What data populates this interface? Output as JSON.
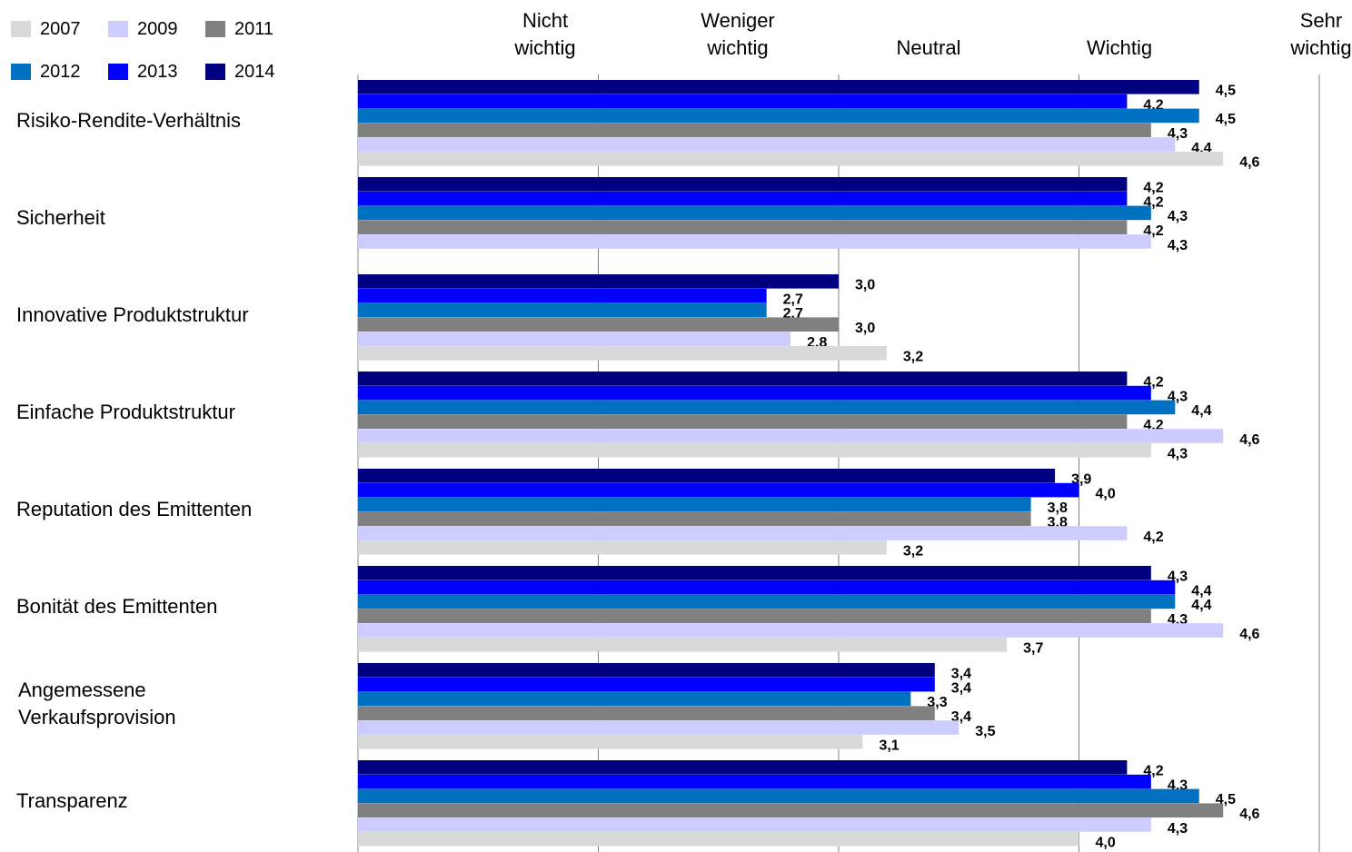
{
  "chart_data": {
    "type": "bar",
    "orientation": "horizontal",
    "xlim": [
      1,
      5
    ],
    "x_tick_labels": [
      {
        "value": 1,
        "label": "Nicht wichtig",
        "lines": [
          "Nicht",
          "wichtig"
        ]
      },
      {
        "value": 2,
        "label": "Weniger wichtig",
        "lines": [
          "Weniger",
          "wichtig"
        ]
      },
      {
        "value": 3,
        "label": "Neutral",
        "lines": [
          "",
          "Neutral"
        ]
      },
      {
        "value": 4,
        "label": "Wichtig",
        "lines": [
          "",
          "Wichtig"
        ]
      },
      {
        "value": 5,
        "label": "Sehr wichtig",
        "lines": [
          "Sehr",
          "wichtig"
        ]
      }
    ],
    "grid": true,
    "legend_position": "top-left",
    "categories": [
      {
        "label": "Risiko-Rendite-Verhältnis",
        "lines": [
          "Risiko-Rendite-Verhältnis"
        ]
      },
      {
        "label": "Sicherheit",
        "lines": [
          "Sicherheit"
        ]
      },
      {
        "label": "Innovative Produktstruktur",
        "lines": [
          "Innovative Produktstruktur"
        ]
      },
      {
        "label": "Einfache Produktstruktur",
        "lines": [
          "Einfache Produktstruktur"
        ]
      },
      {
        "label": "Reputation des Emittenten",
        "lines": [
          "Reputation des Emittenten"
        ]
      },
      {
        "label": "Bonität des Emittenten",
        "lines": [
          "Bonität des Emittenten"
        ]
      },
      {
        "label": "Angemessene Verkaufsprovision",
        "lines": [
          "Angemessene",
          "Verkaufsprovision"
        ]
      },
      {
        "label": "Transparenz",
        "lines": [
          "Transparenz"
        ]
      }
    ],
    "series": [
      {
        "name": "2014",
        "color": "#000080",
        "values": [
          4.5,
          4.2,
          3.0,
          4.2,
          3.9,
          4.3,
          3.4,
          4.2
        ],
        "labels": [
          "4,5",
          "4,2",
          "3,0",
          "4,2",
          "3,9",
          "4,3",
          "3,4",
          "4,2"
        ]
      },
      {
        "name": "2013",
        "color": "#0000FF",
        "values": [
          4.2,
          4.2,
          2.7,
          4.3,
          4.0,
          4.4,
          3.4,
          4.3
        ],
        "labels": [
          "4,2",
          "4,2",
          "2,7",
          "4,3",
          "4,0",
          "4,4",
          "3,4",
          "4,3"
        ]
      },
      {
        "name": "2012",
        "color": "#0070C0",
        "values": [
          4.5,
          4.3,
          2.7,
          4.4,
          3.8,
          4.4,
          3.3,
          4.5
        ],
        "labels": [
          "4,5",
          "4,3",
          "2,7",
          "4,4",
          "3,8",
          "4,4",
          "3,3",
          "4,5"
        ]
      },
      {
        "name": "2011",
        "color": "#808080",
        "values": [
          4.3,
          4.2,
          3.0,
          4.2,
          3.8,
          4.3,
          3.4,
          4.6
        ],
        "labels": [
          "4,3",
          "4,2",
          "3,0",
          "4,2",
          "3,8",
          "4,3",
          "3,4",
          "4,6"
        ]
      },
      {
        "name": "2009",
        "color": "#CCCCFF",
        "values": [
          4.4,
          4.3,
          2.8,
          4.6,
          4.2,
          4.6,
          3.5,
          4.3
        ],
        "labels": [
          "4,4",
          "4,3",
          "2,8",
          "4,6",
          "4,2",
          "4,6",
          "3,5",
          "4,3"
        ]
      },
      {
        "name": "2007",
        "color": "#D9D9D9",
        "values": [
          4.6,
          null,
          3.2,
          4.3,
          3.2,
          3.7,
          3.1,
          4.0
        ],
        "labels": [
          "4,6",
          null,
          "3,2",
          "4,3",
          "3,2",
          "3,7",
          "3,1",
          "4,0"
        ]
      }
    ],
    "legend": [
      {
        "name": "2007",
        "color": "#D9D9D9"
      },
      {
        "name": "2009",
        "color": "#CCCCFF"
      },
      {
        "name": "2011",
        "color": "#808080"
      },
      {
        "name": "2012",
        "color": "#0070C0"
      },
      {
        "name": "2013",
        "color": "#0000FF"
      },
      {
        "name": "2014",
        "color": "#000080"
      }
    ]
  }
}
